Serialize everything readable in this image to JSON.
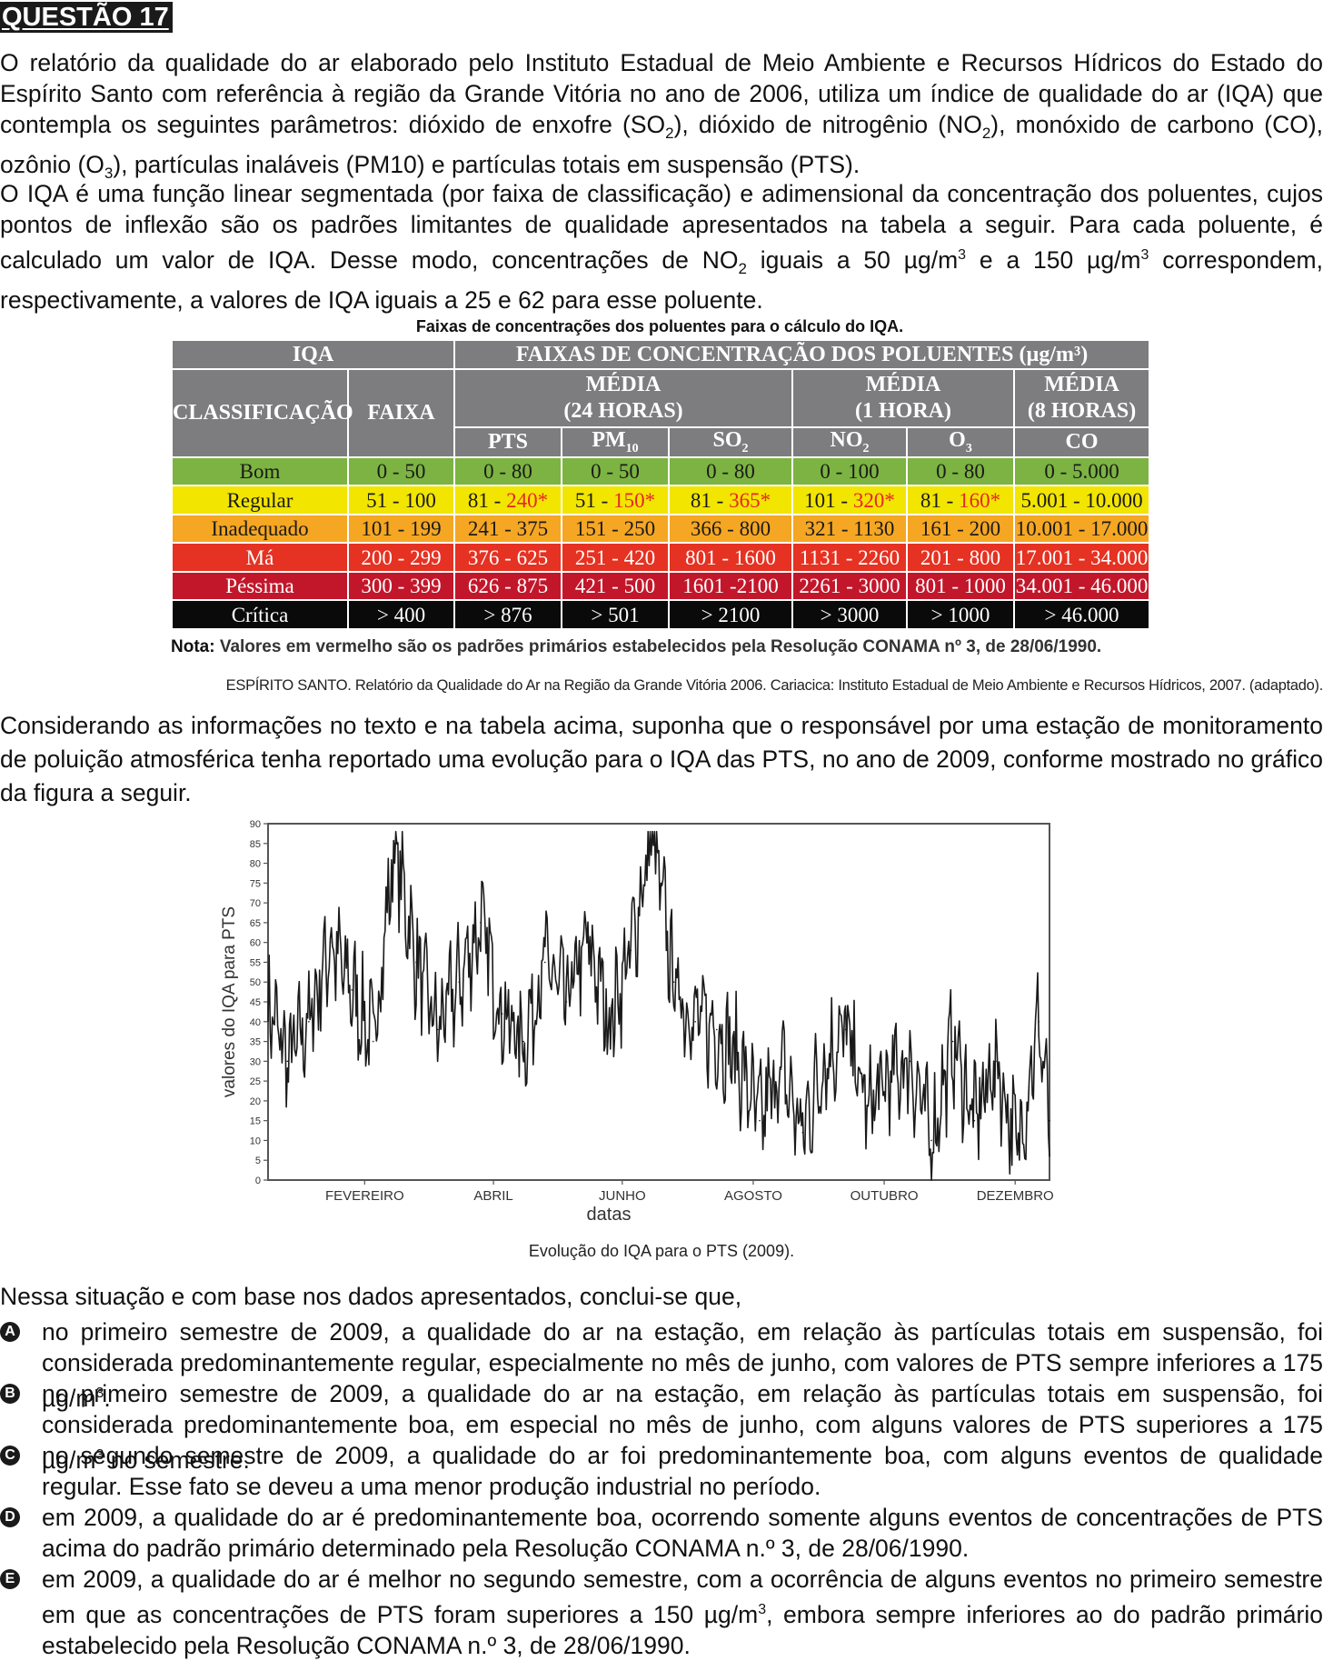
{
  "question": {
    "title": "QUESTÃO 17",
    "paragraphs": [
      {
        "p1a": "O relatório da qualidade do ar elaborado pelo Instituto Estadual de Meio Ambiente e Recursos Hídricos do Estado do Espírito Santo com referência à região da Grande Vitória no ano de 2006, utiliza um índice de qualidade do ar (IQA) que contempla os seguintes parâmetros: dióxido de enxofre (SO",
        "p1b": "), dióxido de nitrogênio (NO",
        "p1c": "), monóxido de carbono (CO), ozônio (O",
        "p1d": "), partículas inaláveis (PM10) e partículas totais em suspensão (PTS)."
      },
      {
        "p2a": "O IQA é uma função linear segmentada (por faixa de classificação) e adimensional da concentração dos poluentes, cujos pontos de inflexão são os padrões limitantes de qualidade apresentados na tabela a seguir. Para cada poluente, é calculado um valor de IQA. Desse modo, concentrações de NO",
        "p2b": " iguais a 50 µg/m",
        "p2c": " e a 150 µg/m",
        "p2d": " correspondem, respectivamente, a valores de IQA iguais a 25 e 62 para esse poluente."
      }
    ],
    "sub2": "2",
    "sub3": "3",
    "sup3": "3"
  },
  "table": {
    "caption": "Faixas de concentrações dos poluentes para o cálculo do IQA.",
    "header": {
      "iqa": "IQA",
      "faixas": "FAIXAS DE CONCENTRAÇÃO DOS POLUENTES (µg/m³)",
      "classificacao": "CLASSIFICAÇÃO",
      "faixa": "FAIXA",
      "media24": "MÉDIA",
      "media24b": "(24 HORAS)",
      "media1": "MÉDIA",
      "media1b": "(1 HORA)",
      "media8": "MÉDIA",
      "media8b": "(8 HORAS)",
      "pts": "PTS",
      "pm": "PM",
      "pm_sub": "10",
      "so": "SO",
      "so_sub": "2",
      "no": "NO",
      "no_sub": "2",
      "o": "O",
      "o_sub": "3",
      "co": "CO"
    },
    "rows": [
      {
        "classe": "Bom",
        "faixa": "0 - 50",
        "pts": "0 - 80",
        "pm10": "0 - 50",
        "so2": "0 - 80",
        "no2": "0 - 100",
        "o3": "0 - 80",
        "co": "0 - 5.000"
      },
      {
        "classe": "Regular",
        "faixa": "51 - 100",
        "pts_a": "81 - ",
        "pts_b": "240*",
        "pm10_a": "51 - ",
        "pm10_b": "150*",
        "so2_a": "81 - ",
        "so2_b": "365*",
        "no2_a": "101 - ",
        "no2_b": "320*",
        "o3_a": "81 - ",
        "o3_b": "160*",
        "co": "5.001 - 10.000"
      },
      {
        "classe": "Inadequado",
        "faixa": "101 - 199",
        "pts": "241 - 375",
        "pm10": "151 - 250",
        "so2": "366 - 800",
        "no2": "321 - 1130",
        "o3": "161 - 200",
        "co": "10.001 - 17.000"
      },
      {
        "classe": "Má",
        "faixa": "200 - 299",
        "pts": "376 - 625",
        "pm10": "251 - 420",
        "so2": "801 - 1600",
        "no2": "1131 - 2260",
        "o3": "201 - 800",
        "co": "17.001 - 34.000"
      },
      {
        "classe": "Péssima",
        "faixa": "300 - 399",
        "pts": "626 - 875",
        "pm10": "421 - 500",
        "so2": "1601 -2100",
        "no2": "2261 - 3000",
        "o3": "801 - 1000",
        "co": "34.001 - 46.000"
      },
      {
        "classe": "Crítica",
        "faixa": "> 400",
        "pts": "> 876",
        "pm10": "> 501",
        "so2": "> 2100",
        "no2": "> 3000",
        "o3": "> 1000",
        "co": "> 46.000"
      }
    ],
    "note_label": "Nota:",
    "note_text": " Valores em vermelho são os padrões primários estabelecidos pela Resolução CONAMA nº 3, de 28/06/1990."
  },
  "source": "ESPÍRITO SANTO. Relatório da Qualidade do Ar na Região da Grande Vitória 2006. Cariacica: Instituto Estadual de Meio Ambiente e Recursos Hídricos, 2007. (adaptado).",
  "paragraph3": "Considerando as informações no texto e na tabela acima, suponha que o responsável por uma estação de monitoramento de poluição atmosférica tenha reportado uma evolução para o IQA das PTS, no ano de 2009, conforme mostrado no gráfico da figura a seguir.",
  "chart_caption": "Evolução do IQA para o PTS (2009).",
  "chart_data": {
    "type": "line",
    "xlabel": "datas",
    "ylabel": "valores do IQA para PTS",
    "ylim": [
      0,
      90
    ],
    "yticks": [
      "0",
      "5",
      "10",
      "15",
      "20",
      "25",
      "30",
      "35",
      "40",
      "45",
      "50",
      "55",
      "60",
      "65",
      "70",
      "75",
      "80",
      "85",
      "90"
    ],
    "x_tick_labels": [
      "FEVEREIRO",
      "ABRIL",
      "JUNHO",
      "AGOSTO",
      "OUTUBRO",
      "DEZEMBRO"
    ],
    "x_tick_day_of_year": [
      46,
      106,
      166,
      227,
      288,
      349
    ],
    "line_color": "#1a1a1a",
    "grid": false,
    "series": [
      {
        "x_day_of_year": [
          1,
          10,
          20,
          30,
          40,
          50,
          60,
          70,
          80,
          90,
          100,
          110,
          120,
          130,
          140,
          150,
          160,
          170,
          180,
          190,
          200,
          210,
          220,
          230,
          240,
          250,
          260,
          270,
          280,
          290,
          300,
          310,
          320,
          330,
          340,
          350,
          360,
          365
        ],
        "values": [
          45,
          30,
          40,
          60,
          48,
          35,
          85,
          55,
          38,
          50,
          65,
          42,
          35,
          55,
          45,
          60,
          40,
          58,
          88,
          50,
          40,
          38,
          30,
          15,
          28,
          12,
          30,
          38,
          18,
          25,
          30,
          10,
          35,
          15,
          30,
          8,
          40,
          15
        ]
      }
    ]
  },
  "lead": "Nessa situação e com base nos dados apresentados, conclui-se que,",
  "options": [
    {
      "letter": "A",
      "text_a": "no primeiro semestre de 2009, a qualidade do ar na estação, em relação às partículas totais em suspensão, foi considerada predominantemente regular, especialmente no mês de junho, com valores de PTS sempre inferiores a 175 µg/m",
      "text_b": "."
    },
    {
      "letter": "B",
      "text_a": "no primeiro semestre de 2009, a qualidade do ar na estação, em relação às partículas totais em suspensão, foi considerada predominantemente boa, em especial no mês de junho, com alguns valores de PTS superiores a 175 µg/m",
      "text_b": " no semestre."
    },
    {
      "letter": "C",
      "text_a": "no segundo semestre de 2009, a qualidade do ar foi predominantemente boa, com alguns eventos de qualidade regular. Esse fato se deveu a uma menor produção industrial no período.",
      "text_b": ""
    },
    {
      "letter": "D",
      "text_a": "em 2009, a qualidade do ar é predominantemente boa, ocorrendo somente alguns eventos de concentrações de PTS acima do padrão primário determinado pela Resolução CONAMA n.º 3, de 28/06/1990.",
      "text_b": ""
    },
    {
      "letter": "E",
      "text_a": "em 2009, a qualidade do ar é melhor no segundo semestre, com a ocorrência de alguns eventos no primeiro semestre em que as concentrações de PTS foram superiores a 150 µg/m",
      "text_b": ", embora sempre inferiores ao do padrão primário estabelecido pela Resolução CONAMA n.º 3, de 28/06/1990."
    }
  ]
}
